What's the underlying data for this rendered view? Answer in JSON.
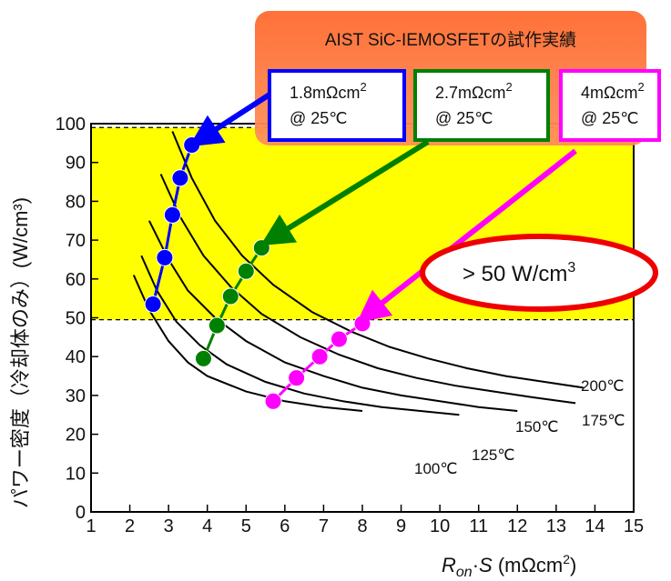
{
  "chart_data": {
    "type": "line",
    "xlabel_main": "R",
    "xlabel_sub": "on",
    "xlabel_rest1": "·",
    "xlabel_s": "S",
    "xlabel_unit": " (mΩcm",
    "xlabel_unit_sup": "2",
    "xlabel_unit_close": ")",
    "ylabel": "パワー密度（冷却体のみ）(W/cm³)",
    "xlim": [
      1,
      15
    ],
    "ylim": [
      0,
      100
    ],
    "x_ticks": [
      1,
      2,
      3,
      4,
      5,
      6,
      7,
      8,
      9,
      10,
      11,
      12,
      13,
      14,
      15
    ],
    "y_ticks": [
      0,
      10,
      20,
      30,
      40,
      50,
      60,
      70,
      80,
      90,
      100
    ],
    "grid": false,
    "highlight_region": {
      "y_from": 49.5,
      "y_to": 99,
      "color": "#ffff00"
    },
    "banner": {
      "title": "AIST SiC-IEMOSFETの試作実績"
    },
    "temperature_curves": [
      {
        "label": "100℃",
        "x": [
          2.1,
          2.5,
          3.0,
          3.5,
          4.0,
          5.0,
          6.0,
          7.0,
          8.0
        ],
        "y": [
          61,
          52,
          44,
          38.5,
          35,
          31,
          28.5,
          27,
          26
        ]
      },
      {
        "label": "125℃",
        "x": [
          2.3,
          2.7,
          3.2,
          3.8,
          4.5,
          5.5,
          6.5,
          7.5,
          8.5,
          9.5,
          10.5
        ],
        "y": [
          66,
          57,
          49,
          43,
          38,
          33.5,
          30.5,
          28.5,
          27,
          26,
          25
        ]
      },
      {
        "label": "150℃",
        "x": [
          2.5,
          3.0,
          3.5,
          4.2,
          5.0,
          6.0,
          7.0,
          8.0,
          9.0,
          10.0,
          11.0,
          12.0
        ],
        "y": [
          75,
          65,
          57,
          50,
          44,
          38.5,
          35,
          32,
          30,
          28.5,
          27,
          26
        ]
      },
      {
        "label": "175℃",
        "x": [
          2.8,
          3.3,
          3.9,
          4.6,
          5.4,
          6.4,
          7.4,
          8.4,
          9.4,
          10.4,
          11.4,
          12.4,
          13.5
        ],
        "y": [
          87,
          76,
          66,
          58,
          51,
          45,
          40.5,
          37,
          34.5,
          32.5,
          31,
          29.5,
          28
        ]
      },
      {
        "label": "200℃",
        "x": [
          3.1,
          3.6,
          4.2,
          4.9,
          5.7,
          6.7,
          7.7,
          8.7,
          9.7,
          10.7,
          11.7,
          12.7,
          13.7
        ],
        "y": [
          98,
          86,
          75,
          66,
          58.5,
          51.5,
          46.5,
          42.5,
          39.5,
          37,
          35,
          33.5,
          32
        ]
      }
    ],
    "series": [
      {
        "name": "1.8mΩcm²",
        "color": "#0000ff",
        "x": [
          2.6,
          2.9,
          3.1,
          3.3,
          3.6
        ],
        "y": [
          53.5,
          65.5,
          76.5,
          86,
          94.5
        ]
      },
      {
        "name": "2.7mΩcm²",
        "color": "#008000",
        "x": [
          3.9,
          4.25,
          4.6,
          5.0,
          5.4
        ],
        "y": [
          39.5,
          48,
          55.5,
          62,
          68
        ]
      },
      {
        "name": "4mΩcm²",
        "color": "#ff00ff",
        "x": [
          5.7,
          6.3,
          6.9,
          7.4,
          8.0
        ],
        "y": [
          28.5,
          34.5,
          40,
          44.5,
          48.5
        ]
      }
    ],
    "boxes": [
      {
        "line1": "1.8mΩcm",
        "sup": "2",
        "line2": "@ 25℃",
        "color": "#0000ff"
      },
      {
        "line1": "2.7mΩcm",
        "sup": "2",
        "line2": "@ 25℃",
        "color": "#008000"
      },
      {
        "line1": "4mΩcm",
        "sup": "2",
        "line2": "@ 25℃",
        "color": "#ff00ff"
      }
    ],
    "callout": {
      "text": "> 50 W/cm",
      "sup": "3",
      "color": "#ee0000"
    }
  }
}
